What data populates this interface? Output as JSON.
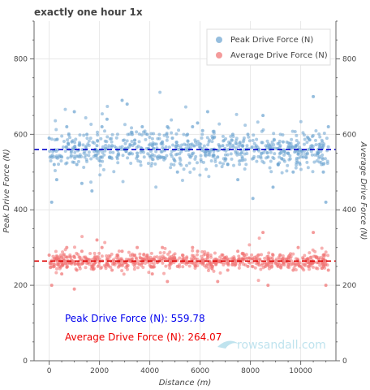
{
  "chart_data": {
    "type": "scatter",
    "title": "exactly one hour 1x",
    "xlabel": "Distance (m)",
    "ylabel": "Peak Drive Force (N)",
    "y2label": "Average Drive Force (N)",
    "xlim": [
      -600,
      11400
    ],
    "ylim": [
      0,
      900
    ],
    "x_ticks": [
      "0",
      "2000",
      "4000",
      "6000",
      "8000",
      "10000"
    ],
    "y_ticks": [
      "0",
      "200",
      "400",
      "600",
      "800"
    ],
    "y2_ticks": [
      "0",
      "200",
      "400",
      "600",
      "800"
    ],
    "grid": true,
    "legend_position": "top-right",
    "series": [
      {
        "name": "Peak Drive Force (N)",
        "color": "#6aa3d0",
        "mean": 559.78,
        "x_range": [
          0,
          11100
        ],
        "spread": 55,
        "values": [
          {
            "x": 0,
            "y": 590
          },
          {
            "x": 100,
            "y": 420
          },
          {
            "x": 200,
            "y": 520
          },
          {
            "x": 300,
            "y": 480
          },
          {
            "x": 500,
            "y": 540
          },
          {
            "x": 700,
            "y": 620
          },
          {
            "x": 900,
            "y": 580
          },
          {
            "x": 1000,
            "y": 660
          },
          {
            "x": 1100,
            "y": 520
          },
          {
            "x": 1300,
            "y": 470
          },
          {
            "x": 1500,
            "y": 600
          },
          {
            "x": 1700,
            "y": 450
          },
          {
            "x": 1900,
            "y": 570
          },
          {
            "x": 2100,
            "y": 620
          },
          {
            "x": 2300,
            "y": 640
          },
          {
            "x": 2500,
            "y": 570
          },
          {
            "x": 2700,
            "y": 540
          },
          {
            "x": 2900,
            "y": 690
          },
          {
            "x": 3100,
            "y": 680
          },
          {
            "x": 3300,
            "y": 600
          },
          {
            "x": 3500,
            "y": 550
          },
          {
            "x": 3700,
            "y": 620
          },
          {
            "x": 3900,
            "y": 600
          },
          {
            "x": 4100,
            "y": 570
          },
          {
            "x": 4300,
            "y": 540
          },
          {
            "x": 4500,
            "y": 580
          },
          {
            "x": 4700,
            "y": 620
          },
          {
            "x": 4900,
            "y": 590
          },
          {
            "x": 5100,
            "y": 500
          },
          {
            "x": 5300,
            "y": 560
          },
          {
            "x": 5500,
            "y": 600
          },
          {
            "x": 5700,
            "y": 620
          },
          {
            "x": 5900,
            "y": 630
          },
          {
            "x": 6100,
            "y": 610
          },
          {
            "x": 6300,
            "y": 660
          },
          {
            "x": 6500,
            "y": 590
          },
          {
            "x": 6700,
            "y": 540
          },
          {
            "x": 6900,
            "y": 570
          },
          {
            "x": 7100,
            "y": 520
          },
          {
            "x": 7300,
            "y": 600
          },
          {
            "x": 7500,
            "y": 480
          },
          {
            "x": 7700,
            "y": 570
          },
          {
            "x": 7900,
            "y": 600
          },
          {
            "x": 8100,
            "y": 430
          },
          {
            "x": 8300,
            "y": 560
          },
          {
            "x": 8500,
            "y": 650
          },
          {
            "x": 8700,
            "y": 540
          },
          {
            "x": 8900,
            "y": 460
          },
          {
            "x": 9100,
            "y": 520
          },
          {
            "x": 9300,
            "y": 580
          },
          {
            "x": 9500,
            "y": 550
          },
          {
            "x": 9700,
            "y": 500
          },
          {
            "x": 9900,
            "y": 560
          },
          {
            "x": 10100,
            "y": 540
          },
          {
            "x": 10300,
            "y": 590
          },
          {
            "x": 10500,
            "y": 700
          },
          {
            "x": 10700,
            "y": 560
          },
          {
            "x": 10900,
            "y": 500
          },
          {
            "x": 11000,
            "y": 420
          },
          {
            "x": 11100,
            "y": 620
          }
        ]
      },
      {
        "name": "Average Drive Force (N)",
        "color": "#f07070",
        "mean": 264.07,
        "x_range": [
          0,
          11100
        ],
        "spread": 25,
        "values": [
          {
            "x": 0,
            "y": 280
          },
          {
            "x": 100,
            "y": 200
          },
          {
            "x": 200,
            "y": 250
          },
          {
            "x": 300,
            "y": 270
          },
          {
            "x": 500,
            "y": 230
          },
          {
            "x": 700,
            "y": 300
          },
          {
            "x": 900,
            "y": 260
          },
          {
            "x": 1000,
            "y": 190
          },
          {
            "x": 1100,
            "y": 240
          },
          {
            "x": 1300,
            "y": 290
          },
          {
            "x": 1500,
            "y": 270
          },
          {
            "x": 1700,
            "y": 250
          },
          {
            "x": 1900,
            "y": 320
          },
          {
            "x": 2100,
            "y": 300
          },
          {
            "x": 2300,
            "y": 260
          },
          {
            "x": 2500,
            "y": 240
          },
          {
            "x": 2700,
            "y": 280
          },
          {
            "x": 2900,
            "y": 290
          },
          {
            "x": 3100,
            "y": 250
          },
          {
            "x": 3300,
            "y": 270
          },
          {
            "x": 3500,
            "y": 300
          },
          {
            "x": 3700,
            "y": 260
          },
          {
            "x": 3900,
            "y": 280
          },
          {
            "x": 4100,
            "y": 230
          },
          {
            "x": 4300,
            "y": 260
          },
          {
            "x": 4500,
            "y": 300
          },
          {
            "x": 4700,
            "y": 210
          },
          {
            "x": 4900,
            "y": 270
          },
          {
            "x": 5100,
            "y": 250
          },
          {
            "x": 5300,
            "y": 280
          },
          {
            "x": 5500,
            "y": 260
          },
          {
            "x": 5700,
            "y": 300
          },
          {
            "x": 5900,
            "y": 290
          },
          {
            "x": 6100,
            "y": 270
          },
          {
            "x": 6300,
            "y": 280
          },
          {
            "x": 6500,
            "y": 250
          },
          {
            "x": 6700,
            "y": 210
          },
          {
            "x": 6900,
            "y": 280
          },
          {
            "x": 7100,
            "y": 240
          },
          {
            "x": 7300,
            "y": 260
          },
          {
            "x": 7500,
            "y": 290
          },
          {
            "x": 7700,
            "y": 270
          },
          {
            "x": 7900,
            "y": 250
          },
          {
            "x": 8100,
            "y": 270
          },
          {
            "x": 8300,
            "y": 260
          },
          {
            "x": 8500,
            "y": 340
          },
          {
            "x": 8700,
            "y": 200
          },
          {
            "x": 8900,
            "y": 280
          },
          {
            "x": 9100,
            "y": 250
          },
          {
            "x": 9300,
            "y": 260
          },
          {
            "x": 9500,
            "y": 270
          },
          {
            "x": 9700,
            "y": 240
          },
          {
            "x": 9900,
            "y": 300
          },
          {
            "x": 10100,
            "y": 270
          },
          {
            "x": 10300,
            "y": 250
          },
          {
            "x": 10500,
            "y": 340
          },
          {
            "x": 10700,
            "y": 260
          },
          {
            "x": 10900,
            "y": 280
          },
          {
            "x": 11000,
            "y": 200
          },
          {
            "x": 11100,
            "y": 240
          }
        ]
      }
    ],
    "mean_lines": [
      {
        "series": "Peak Drive Force (N)",
        "value": 559.78,
        "color": "#0000cc"
      },
      {
        "series": "Average Drive Force (N)",
        "value": 264.07,
        "color": "#dd0000"
      }
    ],
    "annotations": [
      {
        "text": "Peak Drive Force (N): 559.78",
        "color": "#0000ee"
      },
      {
        "text": "Average Drive Force (N): 264.07",
        "color": "#ee0000"
      }
    ],
    "watermark": "rowsandall.com"
  }
}
